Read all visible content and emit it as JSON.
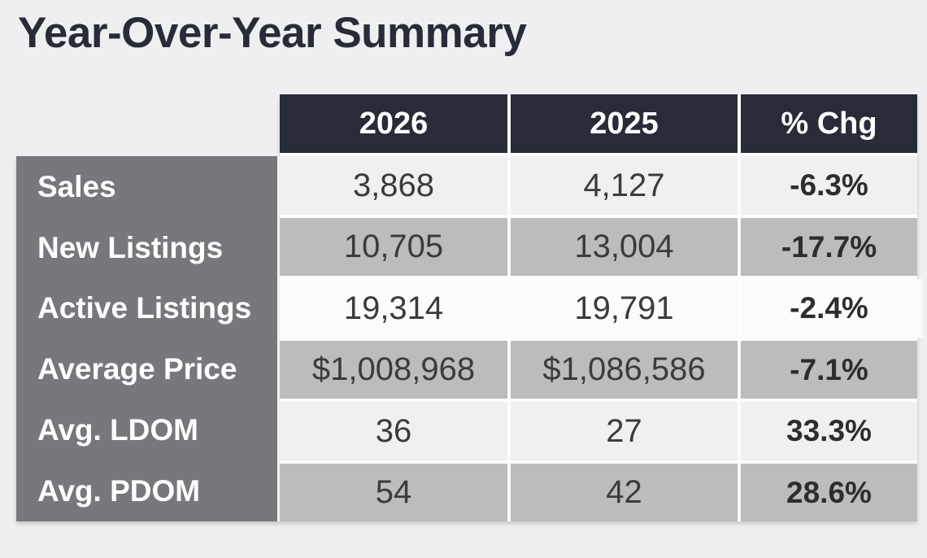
{
  "page": {
    "title": "Year-Over-Year Summary"
  },
  "table": {
    "columns": [
      "2026",
      "2025",
      "% Chg"
    ],
    "rows": [
      {
        "label": "Sales",
        "y2026": "3,868",
        "y2025": "4,127",
        "chg": "-6.3%"
      },
      {
        "label": "New Listings",
        "y2026": "10,705",
        "y2025": "13,004",
        "chg": "-17.7%"
      },
      {
        "label": "Active Listings",
        "y2026": "19,314",
        "y2025": "19,791",
        "chg": "-2.4%"
      },
      {
        "label": "Average Price",
        "y2026": "$1,008,968",
        "y2025": "$1,086,586",
        "chg": "-7.1%"
      },
      {
        "label": "Avg. LDOM",
        "y2026": "36",
        "y2025": "27",
        "chg": "33.3%"
      },
      {
        "label": "Avg. PDOM",
        "y2026": "54",
        "y2025": "42",
        "chg": "28.6%"
      }
    ],
    "highlight_row_index": 2
  },
  "colors": {
    "page_background": "#efeff1",
    "title_text": "#272c38",
    "header_background": "#272c38",
    "header_text": "#ffffff",
    "label_column_background": "#77787c",
    "label_text": "#ffffff",
    "row_light": "#f0f0f1",
    "row_gray": "#bcbcbc",
    "row_highlight": "#fbfbfb",
    "number_text": "#3b3b3b",
    "gap_line": "#fdfdfd"
  },
  "chart_data": {
    "type": "table",
    "title": "Year-Over-Year Summary",
    "columns": [
      "",
      "2026",
      "2025",
      "% Chg"
    ],
    "rows": [
      [
        "Sales",
        "3,868",
        "4,127",
        "-6.3%"
      ],
      [
        "New Listings",
        "10,705",
        "13,004",
        "-17.7%"
      ],
      [
        "Active Listings",
        "19,314",
        "19,791",
        "-2.4%"
      ],
      [
        "Average Price",
        "$1,008,968",
        "$1,086,586",
        "-7.1%"
      ],
      [
        "Avg. LDOM",
        "36",
        "27",
        "33.3%"
      ],
      [
        "Avg. PDOM",
        "54",
        "42",
        "28.6%"
      ]
    ]
  }
}
